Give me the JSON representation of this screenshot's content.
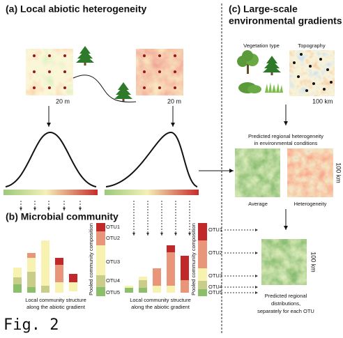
{
  "panel_a": {
    "title": "(a) Local abiotic heterogeneity",
    "scale_bars": [
      "20 m",
      "20 m"
    ]
  },
  "panel_b": {
    "title": "(b) Microbial community",
    "pooled_axis_labels": [
      "Pooled community composition",
      "Pooled community composition"
    ],
    "pooled_otus": [
      [
        "OTU1",
        "OTU2",
        "OTU3",
        "OTU4",
        "OTU5"
      ],
      [
        "OTU1",
        "OTU2",
        "OTU3",
        "OTU4",
        "OTU5"
      ]
    ],
    "captions": [
      [
        "Local community structure",
        "along the abiotic gradient"
      ],
      [
        "Local community structure",
        "along the abiotic gradient"
      ]
    ]
  },
  "panel_c": {
    "title": [
      "(c) Large-scale",
      "environmental gradients"
    ],
    "vegetation_label": "Vegetation type",
    "topography_label": "Topography",
    "topography_scale": "100 km",
    "heterogeneity_caption": [
      "Predicted regional heterogeneity",
      "in environmental conditions"
    ],
    "map_scale": "100 km",
    "average_label": "Average",
    "heterogeneity_label": "Heterogeneity",
    "distribution_scale": "100 km",
    "distribution_caption": [
      "Predicted regional",
      "distributions,",
      "separately for each OTU"
    ]
  },
  "figure_label": "Fig. 2"
}
